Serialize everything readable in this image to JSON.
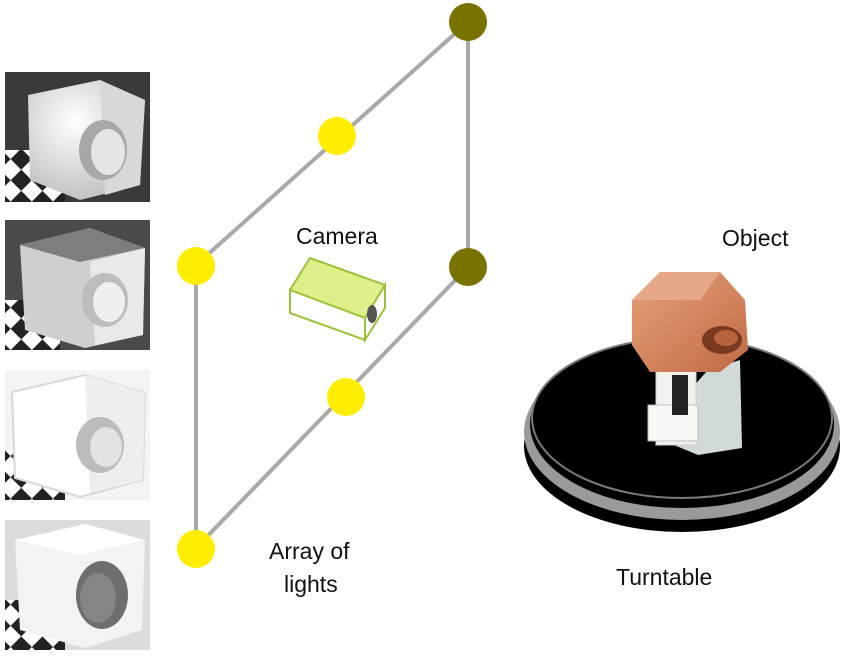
{
  "labels": {
    "camera": "Camera",
    "object": "Object",
    "lights_line1": "Array of",
    "lights_line2": "lights",
    "turntable": "Turntable"
  },
  "colors": {
    "frame": "#a9a9a9",
    "light_on": "#ffee00",
    "light_dim": "#7a7200",
    "camera_top": "#dff08a",
    "camera_edge": "#9cc23a",
    "object_clay": "#d98a5e",
    "turntable_top": "#000000",
    "turntable_rim": "#9a9a9a"
  },
  "icons": {
    "samples": "clay-cube-photo",
    "camera": "camera-box-icon",
    "object": "clay-cube-object",
    "turntable": "turntable-disc"
  }
}
